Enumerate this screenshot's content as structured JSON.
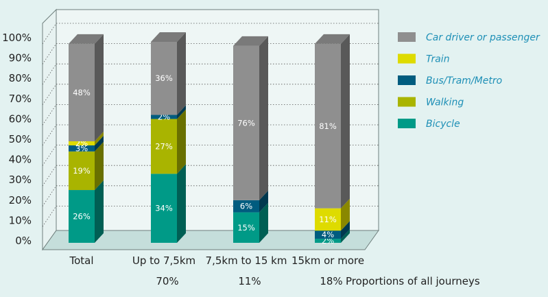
{
  "chart_data": {
    "type": "bar",
    "stacked": true,
    "style": "3d",
    "categories": [
      "Total",
      "Up to 7,5km",
      "7,5km to 15 km",
      "15km or more"
    ],
    "shares": [
      "",
      "70%",
      "11%",
      "18%"
    ],
    "shares_label": "Proportions of all journeys",
    "ylim": [
      0,
      100
    ],
    "yticks": [
      "0%",
      "10%",
      "20%",
      "30%",
      "40%",
      "50%",
      "60%",
      "70%",
      "80%",
      "90%",
      "100%"
    ],
    "legend_position": "right",
    "series": [
      {
        "name": "Bicycle",
        "color": "#009a87",
        "values": [
          26,
          34,
          15,
          2
        ]
      },
      {
        "name": "Walking",
        "color": "#a9b400",
        "values": [
          19,
          27,
          0,
          0
        ]
      },
      {
        "name": "Bus/Tram/Metro",
        "color": "#005c7f",
        "values": [
          3,
          2,
          6,
          4
        ]
      },
      {
        "name": "Train",
        "color": "#dedb00",
        "values": [
          2,
          0,
          0,
          11
        ]
      },
      {
        "name": "Car driver or passenger",
        "color": "#8f8f8f",
        "values": [
          48,
          36,
          76,
          81
        ]
      }
    ],
    "legend_order": [
      "Car driver or passenger",
      "Train",
      "Bus/Tram/Metro",
      "Walking",
      "Bicycle"
    ]
  }
}
